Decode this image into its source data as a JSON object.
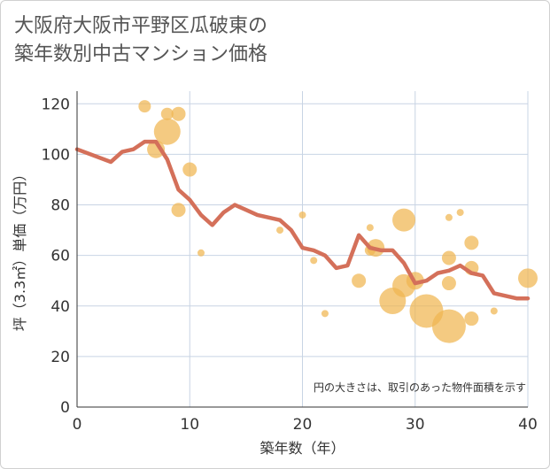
{
  "title": {
    "line1": "大阪府大阪市平野区瓜破東の",
    "line2": "築年数別中古マンション価格"
  },
  "colors": {
    "line": "#d4705a",
    "bubble": "#f0b550",
    "grid": "#c8d4e4",
    "plot_bg": "#ffffff"
  },
  "chart_data": {
    "type": "scatter",
    "xlabel": "築年数（年）",
    "ylabel": "坪（3.3㎡）単価（万円）",
    "note": "円の大きさは、取引のあった物件面積を示す",
    "xlim": [
      0,
      40
    ],
    "ylim": [
      0,
      125
    ],
    "x_ticks": [
      0,
      10,
      20,
      30,
      40
    ],
    "y_ticks": [
      0,
      20,
      40,
      60,
      80,
      100,
      120
    ],
    "grid": true,
    "bubbles": [
      {
        "x": 6,
        "y": 119,
        "size": 14
      },
      {
        "x": 8,
        "y": 116,
        "size": 14
      },
      {
        "x": 9,
        "y": 116,
        "size": 16
      },
      {
        "x": 8,
        "y": 109,
        "size": 30
      },
      {
        "x": 7,
        "y": 102,
        "size": 20
      },
      {
        "x": 10,
        "y": 94,
        "size": 16
      },
      {
        "x": 9,
        "y": 78,
        "size": 16
      },
      {
        "x": 11,
        "y": 61,
        "size": 8
      },
      {
        "x": 18,
        "y": 70,
        "size": 8
      },
      {
        "x": 20,
        "y": 76,
        "size": 8
      },
      {
        "x": 21,
        "y": 58,
        "size": 8
      },
      {
        "x": 22,
        "y": 37,
        "size": 8
      },
      {
        "x": 25,
        "y": 50,
        "size": 16
      },
      {
        "x": 26,
        "y": 71,
        "size": 8
      },
      {
        "x": 26,
        "y": 62,
        "size": 12
      },
      {
        "x": 26.5,
        "y": 63,
        "size": 20
      },
      {
        "x": 28,
        "y": 42,
        "size": 30
      },
      {
        "x": 29,
        "y": 74,
        "size": 26
      },
      {
        "x": 29,
        "y": 48,
        "size": 26
      },
      {
        "x": 30,
        "y": 50,
        "size": 20
      },
      {
        "x": 31,
        "y": 38,
        "size": 38
      },
      {
        "x": 33,
        "y": 32,
        "size": 38
      },
      {
        "x": 33,
        "y": 49,
        "size": 16
      },
      {
        "x": 33,
        "y": 59,
        "size": 16
      },
      {
        "x": 33,
        "y": 75,
        "size": 8
      },
      {
        "x": 34,
        "y": 77,
        "size": 8
      },
      {
        "x": 35,
        "y": 65,
        "size": 16
      },
      {
        "x": 35,
        "y": 55,
        "size": 16
      },
      {
        "x": 35,
        "y": 35,
        "size": 16
      },
      {
        "x": 37,
        "y": 38,
        "size": 8
      },
      {
        "x": 40,
        "y": 51,
        "size": 22
      }
    ],
    "trend": {
      "x": [
        0,
        3,
        4,
        5,
        6,
        7,
        8,
        9,
        10,
        11,
        12,
        13,
        14,
        15,
        16,
        17,
        18,
        19,
        20,
        21,
        22,
        23,
        24,
        25,
        26,
        27,
        28,
        29,
        30,
        31,
        32,
        33,
        34,
        35,
        36,
        37,
        38,
        39,
        40
      ],
      "y": [
        102,
        97,
        101,
        102,
        105,
        105,
        98,
        86,
        82,
        76,
        72,
        77,
        80,
        78,
        76,
        75,
        74,
        70,
        63,
        62,
        60,
        55,
        56,
        68,
        63,
        62,
        62,
        57,
        49,
        50,
        53,
        54,
        56,
        53,
        52,
        45,
        44,
        43,
        43
      ]
    }
  }
}
